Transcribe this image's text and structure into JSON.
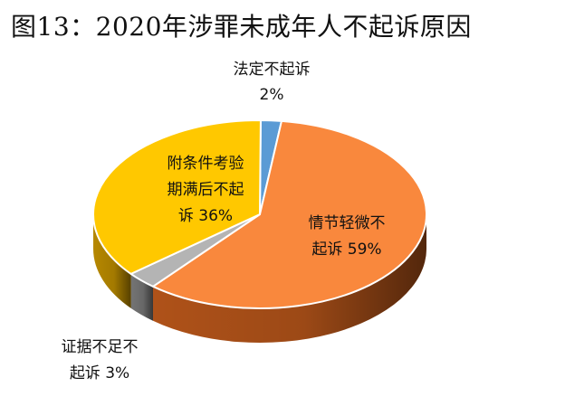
{
  "chart_data": {
    "type": "pie",
    "title": "图13：2020年涉罪未成年人不起诉原因",
    "slices": [
      {
        "name": "法定不起诉",
        "value": 2,
        "percent_label": "2%",
        "label_lines": [
          "法定不起诉",
          "2%"
        ],
        "color": "#5B9BD5",
        "side_color": "#2E6DA4"
      },
      {
        "name": "情节轻微不起诉",
        "value": 59,
        "percent_label": "59%",
        "label_lines": [
          "情节轻微不",
          "起诉 59%"
        ],
        "color": "#F9883D",
        "side_color": "#B8561A"
      },
      {
        "name": "证据不足不起诉",
        "value": 3,
        "percent_label": "3%",
        "label_lines": [
          "证据不足不",
          "起诉 3%"
        ],
        "color": "#B4B4B4",
        "side_color": "#7A7A7A"
      },
      {
        "name": "附条件考验期满后不起诉",
        "value": 36,
        "percent_label": "36%",
        "label_lines": [
          "附条件考验",
          "期满后不起",
          "诉 36%"
        ],
        "color": "#FFC800",
        "side_color": "#C08F00"
      }
    ]
  }
}
